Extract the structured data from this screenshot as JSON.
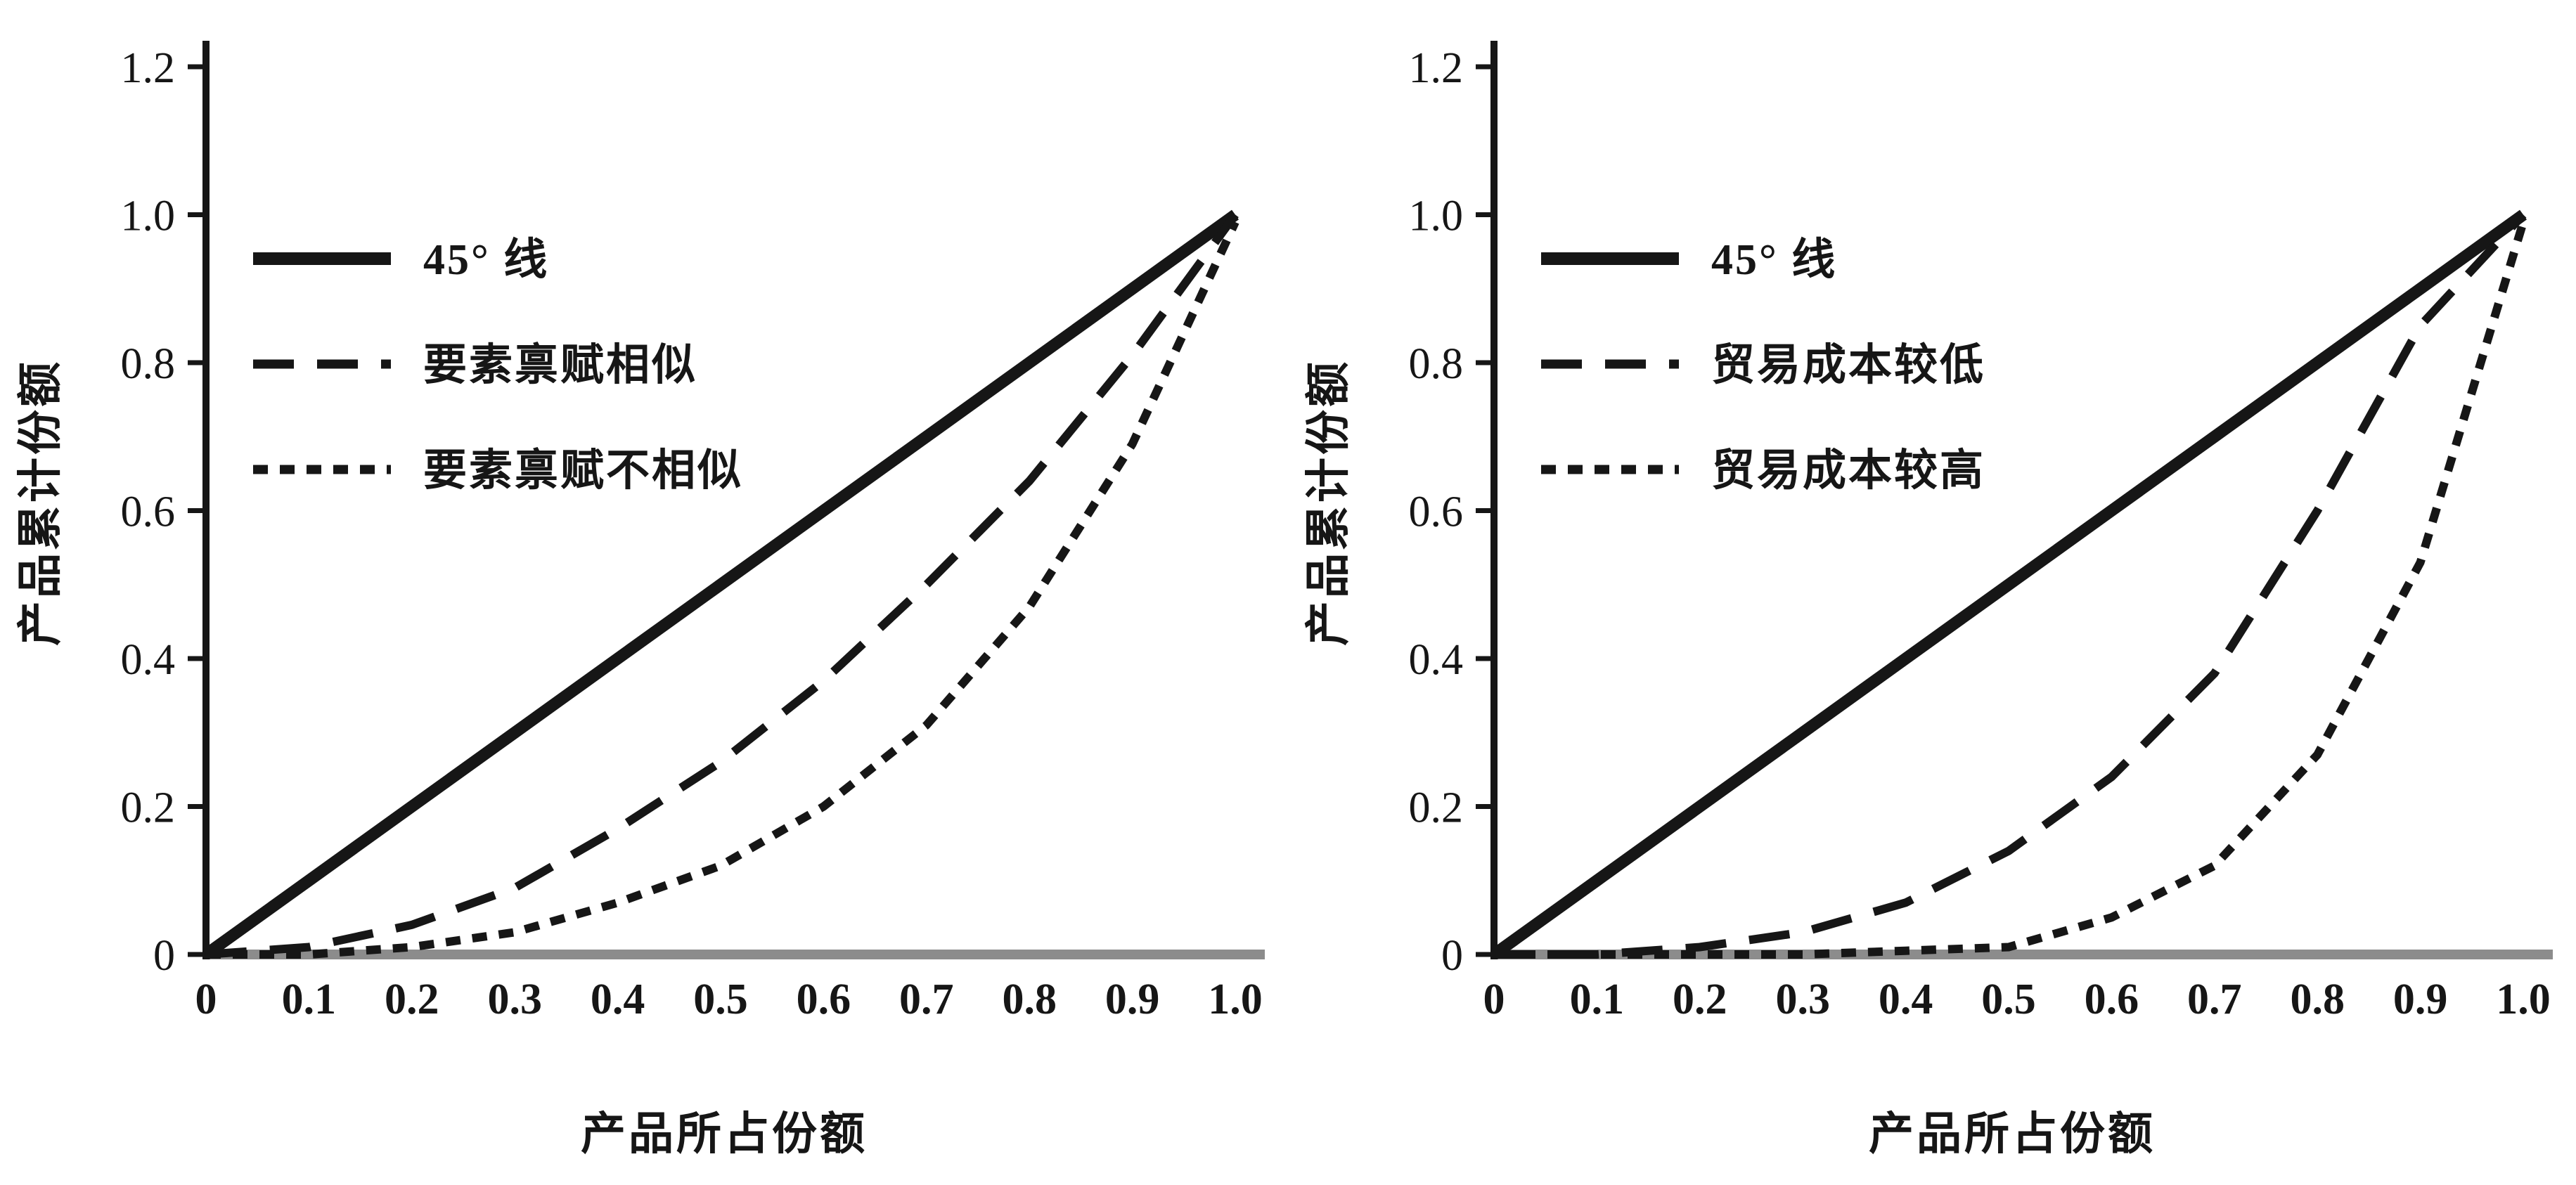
{
  "figure": {
    "background": "#ffffff",
    "text_color": "#161616",
    "axis_baseline_color": "#8c8c8c"
  },
  "chart_data": [
    {
      "type": "line",
      "title": "",
      "xlabel": "产品所占份额",
      "ylabel": "产品累计份额",
      "xlim": [
        0,
        1.0
      ],
      "ylim": [
        0,
        1.2
      ],
      "grid": false,
      "legend_position": "upper-left",
      "axis_color": "#8c8c8c",
      "line_color": "#161616",
      "x_tick_values": [
        0,
        0.1,
        0.2,
        0.3,
        0.4,
        0.5,
        0.6,
        0.7,
        0.8,
        0.9,
        1.0
      ],
      "x_tick_labels": [
        "0",
        "0.1",
        "0.2",
        "0.3",
        "0.4",
        "0.5",
        "0.6",
        "0.7",
        "0.8",
        "0.9",
        "1.0"
      ],
      "y_tick_values": [
        0,
        0.2,
        0.4,
        0.6,
        0.8,
        1.0,
        1.2
      ],
      "y_tick_labels": [
        "0",
        "0.2",
        "0.4",
        "0.6",
        "0.8",
        "1.0",
        "1.2"
      ],
      "x": [
        0,
        0.1,
        0.2,
        0.3,
        0.4,
        0.5,
        0.6,
        0.7,
        0.8,
        0.9,
        1.0
      ],
      "series": [
        {
          "name": "45° 线",
          "style": "solid",
          "values": [
            0,
            0.1,
            0.2,
            0.3,
            0.4,
            0.5,
            0.6,
            0.7,
            0.8,
            0.9,
            1.0
          ]
        },
        {
          "name": "要素禀赋相似",
          "style": "dashed",
          "values": [
            0,
            0.01,
            0.04,
            0.09,
            0.17,
            0.26,
            0.37,
            0.5,
            0.64,
            0.81,
            1.0
          ]
        },
        {
          "name": "要素禀赋不相似",
          "style": "dotted",
          "values": [
            0,
            0,
            0.01,
            0.03,
            0.07,
            0.12,
            0.2,
            0.31,
            0.47,
            0.69,
            0.99
          ]
        }
      ]
    },
    {
      "type": "line",
      "title": "",
      "xlabel": "产品所占份额",
      "ylabel": "产品累计份额",
      "xlim": [
        0,
        1.0
      ],
      "ylim": [
        0,
        1.2
      ],
      "grid": false,
      "legend_position": "upper-left",
      "axis_color": "#8c8c8c",
      "line_color": "#161616",
      "x_tick_values": [
        0,
        0.1,
        0.2,
        0.3,
        0.4,
        0.5,
        0.6,
        0.7,
        0.8,
        0.9,
        1.0
      ],
      "x_tick_labels": [
        "0",
        "0.1",
        "0.2",
        "0.3",
        "0.4",
        "0.5",
        "0.6",
        "0.7",
        "0.8",
        "0.9",
        "1.0"
      ],
      "y_tick_values": [
        0,
        0.2,
        0.4,
        0.6,
        0.8,
        1.0,
        1.2
      ],
      "y_tick_labels": [
        "0",
        "0.2",
        "0.4",
        "0.6",
        "0.8",
        "1.0",
        "1.2"
      ],
      "x": [
        0,
        0.1,
        0.2,
        0.3,
        0.4,
        0.5,
        0.6,
        0.7,
        0.8,
        0.9,
        1.0
      ],
      "series": [
        {
          "name": "45° 线",
          "style": "solid",
          "values": [
            0,
            0.1,
            0.2,
            0.3,
            0.4,
            0.5,
            0.6,
            0.7,
            0.8,
            0.9,
            1.0
          ]
        },
        {
          "name": "贸易成本较低",
          "style": "dashed",
          "values": [
            0,
            0,
            0.01,
            0.03,
            0.07,
            0.14,
            0.24,
            0.38,
            0.6,
            0.85,
            1.0
          ]
        },
        {
          "name": "贸易成本较高",
          "style": "dotted",
          "values": [
            0,
            0,
            0,
            0,
            0.005,
            0.01,
            0.05,
            0.12,
            0.27,
            0.53,
            0.99
          ]
        }
      ]
    }
  ]
}
